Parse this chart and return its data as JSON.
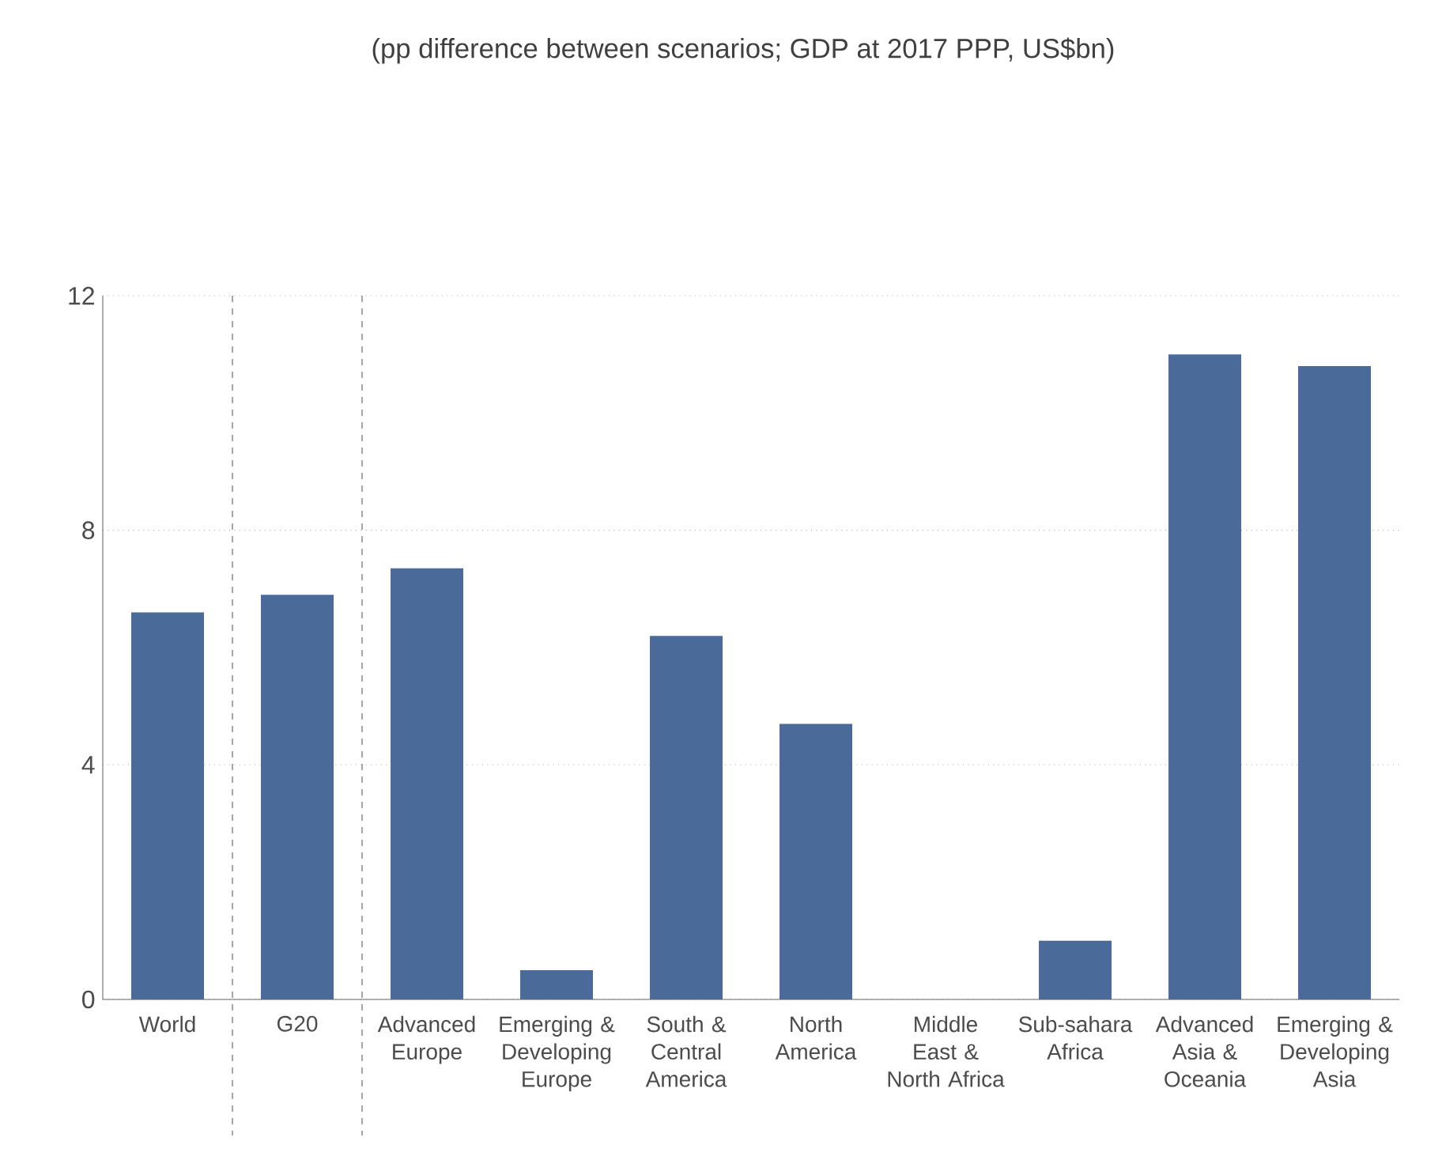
{
  "chart_data": {
    "type": "bar",
    "title": "(pp difference between scenarios; GDP at 2017 PPP, US$bn)",
    "categories": [
      "World",
      "G20",
      "Advanced Europe",
      "Emerging & Developing Europe",
      "South & Central America",
      "North America",
      "Middle East & North Africa",
      "Sub-sahara Africa",
      "Advanced Asia & Oceania",
      "Emerging & Developing Asia"
    ],
    "values": [
      6.6,
      6.9,
      7.35,
      0.5,
      6.2,
      4.7,
      0,
      1.0,
      11.0,
      10.8
    ],
    "color": "#4a6a9a",
    "ylim": [
      0,
      12
    ],
    "yticks": [
      0,
      4,
      8,
      12
    ],
    "grid": "y"
  }
}
